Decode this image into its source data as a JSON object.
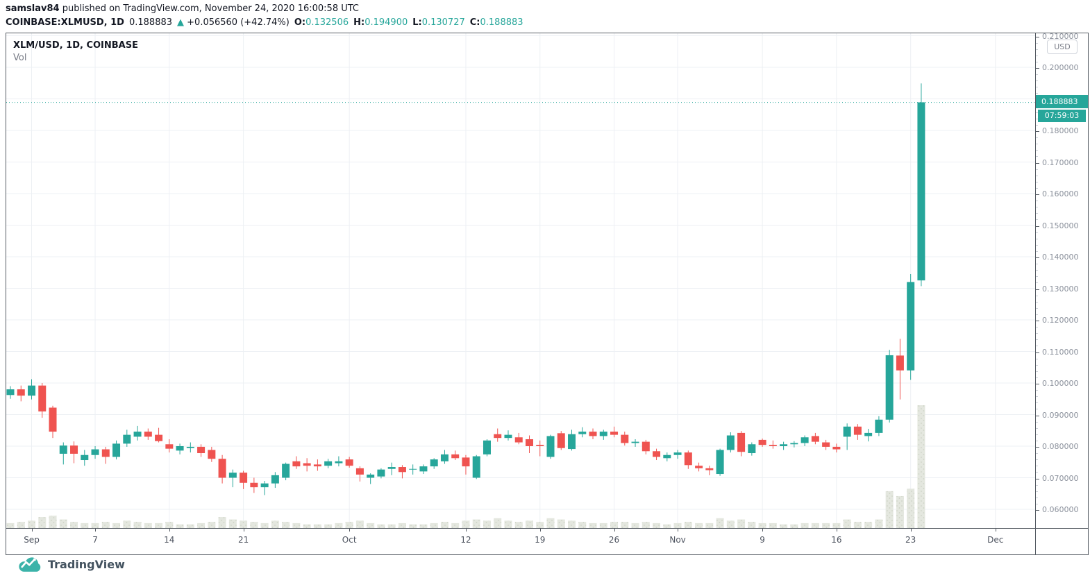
{
  "header": {
    "author": "samslav84",
    "published_rest": " published on TradingView.com, November 24, 2020 16:00:58 UTC",
    "symbol": "COINBASE:XLMUSD, 1D",
    "last_price": "0.188883",
    "arrow_up": "▲",
    "change": "+0.056560 (+42.74%)",
    "ohlc": [
      {
        "label": "O:",
        "value": "0.132506"
      },
      {
        "label": "H:",
        "value": "0.194900"
      },
      {
        "label": "L:",
        "value": "0.130727"
      },
      {
        "label": "C:",
        "value": "0.188883"
      }
    ]
  },
  "chart": {
    "legend_title": "XLM/USD, 1D, COINBASE",
    "legend_vol": "Vol",
    "currency_badge": "USD",
    "price_label": "0.188883",
    "countdown": "07:59:03",
    "colors": {
      "up": "#26a69a",
      "down": "#ef5350",
      "price_line": "#26a69a",
      "grid": "#edf0f4",
      "volume": "#e4e7df",
      "volume_dot": "#c9cfc0"
    }
  },
  "footer": {
    "logo_text": "TradingView"
  },
  "chart_data": {
    "type": "candlestick",
    "symbol": "XLM/USD",
    "interval": "1D",
    "exchange": "COINBASE",
    "title": "XLM/USD, 1D, COINBASE",
    "current_price": 0.188883,
    "y_axis": {
      "min": 0.06,
      "max": 0.21,
      "step": 0.01,
      "format_decimals": 6,
      "unit": "USD"
    },
    "x_labels": [
      {
        "label": "Sep",
        "day_index": 2
      },
      {
        "label": "7",
        "day_index": 8
      },
      {
        "label": "14",
        "day_index": 15
      },
      {
        "label": "21",
        "day_index": 22
      },
      {
        "label": "Oct",
        "day_index": 32
      },
      {
        "label": "12",
        "day_index": 43
      },
      {
        "label": "19",
        "day_index": 50
      },
      {
        "label": "26",
        "day_index": 57
      },
      {
        "label": "Nov",
        "day_index": 63
      },
      {
        "label": "9",
        "day_index": 71
      },
      {
        "label": "16",
        "day_index": 78
      },
      {
        "label": "23",
        "day_index": 85
      },
      {
        "label": "Dec",
        "day_index": 93
      }
    ],
    "candles_format": [
      "open",
      "high",
      "low",
      "close",
      "volume_pct_of_max"
    ],
    "candles": [
      [
        0.0962,
        0.099,
        0.095,
        0.098,
        4
      ],
      [
        0.098,
        0.0992,
        0.0942,
        0.096,
        5
      ],
      [
        0.096,
        0.1012,
        0.0948,
        0.0992,
        6
      ],
      [
        0.0992,
        0.1,
        0.089,
        0.091,
        9
      ],
      [
        0.0922,
        0.0928,
        0.0826,
        0.0846,
        10
      ],
      [
        0.0776,
        0.0812,
        0.0742,
        0.0802,
        7
      ],
      [
        0.0802,
        0.0815,
        0.0746,
        0.0776,
        5
      ],
      [
        0.0756,
        0.0788,
        0.0738,
        0.0772,
        4
      ],
      [
        0.0772,
        0.08,
        0.076,
        0.079,
        4
      ],
      [
        0.079,
        0.0798,
        0.0744,
        0.0766,
        5
      ],
      [
        0.0766,
        0.0818,
        0.0758,
        0.0808,
        4
      ],
      [
        0.0808,
        0.0852,
        0.0798,
        0.0836,
        6
      ],
      [
        0.083,
        0.0864,
        0.0818,
        0.0846,
        5
      ],
      [
        0.0846,
        0.0856,
        0.082,
        0.083,
        4
      ],
      [
        0.0836,
        0.0858,
        0.0812,
        0.0816,
        4
      ],
      [
        0.0806,
        0.0822,
        0.078,
        0.0792,
        5
      ],
      [
        0.0786,
        0.0808,
        0.0774,
        0.08,
        3
      ],
      [
        0.0794,
        0.0812,
        0.078,
        0.0798,
        3
      ],
      [
        0.0798,
        0.0806,
        0.0766,
        0.0778,
        4
      ],
      [
        0.0788,
        0.0798,
        0.075,
        0.076,
        5
      ],
      [
        0.076,
        0.0772,
        0.0682,
        0.07,
        9
      ],
      [
        0.07,
        0.0726,
        0.067,
        0.0716,
        7
      ],
      [
        0.0716,
        0.0722,
        0.0664,
        0.0684,
        6
      ],
      [
        0.0684,
        0.07,
        0.0652,
        0.067,
        5
      ],
      [
        0.067,
        0.069,
        0.0645,
        0.0682,
        4
      ],
      [
        0.0682,
        0.0718,
        0.0668,
        0.0708,
        6
      ],
      [
        0.07,
        0.0748,
        0.0692,
        0.0744,
        5
      ],
      [
        0.0752,
        0.0768,
        0.0728,
        0.0736,
        4
      ],
      [
        0.0746,
        0.0762,
        0.072,
        0.0738,
        3
      ],
      [
        0.0742,
        0.0758,
        0.0722,
        0.0736,
        3
      ],
      [
        0.0738,
        0.076,
        0.073,
        0.0752,
        3
      ],
      [
        0.0746,
        0.0768,
        0.0736,
        0.0752,
        4
      ],
      [
        0.0758,
        0.0766,
        0.0732,
        0.0738,
        5
      ],
      [
        0.073,
        0.0736,
        0.0688,
        0.071,
        6
      ],
      [
        0.07,
        0.0714,
        0.068,
        0.071,
        4
      ],
      [
        0.0704,
        0.073,
        0.0698,
        0.0726,
        3
      ],
      [
        0.0728,
        0.0748,
        0.0708,
        0.0734,
        3
      ],
      [
        0.0734,
        0.074,
        0.0698,
        0.0718,
        4
      ],
      [
        0.0726,
        0.0742,
        0.071,
        0.0728,
        3
      ],
      [
        0.072,
        0.0742,
        0.0712,
        0.0736,
        3
      ],
      [
        0.0736,
        0.0762,
        0.0728,
        0.0758,
        4
      ],
      [
        0.0752,
        0.0788,
        0.0744,
        0.0774,
        5
      ],
      [
        0.0774,
        0.0786,
        0.0756,
        0.0762,
        4
      ],
      [
        0.0764,
        0.0772,
        0.071,
        0.0736,
        6
      ],
      [
        0.07,
        0.0772,
        0.0696,
        0.0768,
        7
      ],
      [
        0.0774,
        0.0822,
        0.0768,
        0.0818,
        6
      ],
      [
        0.0838,
        0.0856,
        0.0814,
        0.0826,
        8
      ],
      [
        0.0826,
        0.085,
        0.0818,
        0.0836,
        6
      ],
      [
        0.0828,
        0.0842,
        0.0806,
        0.0812,
        5
      ],
      [
        0.0822,
        0.0834,
        0.0778,
        0.08,
        6
      ],
      [
        0.0804,
        0.0818,
        0.0768,
        0.08,
        5
      ],
      [
        0.0766,
        0.0836,
        0.076,
        0.0832,
        8
      ],
      [
        0.0841,
        0.0848,
        0.0788,
        0.0794,
        7
      ],
      [
        0.0791,
        0.0852,
        0.0786,
        0.0838,
        6
      ],
      [
        0.0838,
        0.086,
        0.0828,
        0.0846,
        5
      ],
      [
        0.0846,
        0.0856,
        0.0822,
        0.0832,
        4
      ],
      [
        0.0832,
        0.0852,
        0.082,
        0.0846,
        4
      ],
      [
        0.0846,
        0.0862,
        0.0828,
        0.0836,
        5
      ],
      [
        0.0836,
        0.0846,
        0.0802,
        0.081,
        5
      ],
      [
        0.081,
        0.0822,
        0.0798,
        0.0814,
        4
      ],
      [
        0.0814,
        0.082,
        0.0774,
        0.0784,
        5
      ],
      [
        0.0784,
        0.0792,
        0.0756,
        0.0766,
        4
      ],
      [
        0.0762,
        0.078,
        0.0752,
        0.0772,
        3
      ],
      [
        0.0772,
        0.0788,
        0.076,
        0.078,
        4
      ],
      [
        0.078,
        0.0786,
        0.0728,
        0.074,
        5
      ],
      [
        0.0738,
        0.0748,
        0.072,
        0.073,
        4
      ],
      [
        0.073,
        0.0738,
        0.0708,
        0.0724,
        4
      ],
      [
        0.0712,
        0.0792,
        0.0706,
        0.0788,
        8
      ],
      [
        0.0788,
        0.0844,
        0.078,
        0.0834,
        6
      ],
      [
        0.0842,
        0.0848,
        0.0768,
        0.0782,
        7
      ],
      [
        0.0778,
        0.0812,
        0.077,
        0.0806,
        5
      ],
      [
        0.082,
        0.0824,
        0.0798,
        0.0804,
        4
      ],
      [
        0.0804,
        0.0818,
        0.0792,
        0.08,
        4
      ],
      [
        0.08,
        0.0814,
        0.0788,
        0.0806,
        3
      ],
      [
        0.0806,
        0.0816,
        0.0796,
        0.081,
        3
      ],
      [
        0.081,
        0.0834,
        0.08,
        0.0828,
        4
      ],
      [
        0.0832,
        0.0842,
        0.0806,
        0.0814,
        4
      ],
      [
        0.0812,
        0.082,
        0.0788,
        0.0798,
        4
      ],
      [
        0.0798,
        0.0808,
        0.078,
        0.079,
        4
      ],
      [
        0.083,
        0.0872,
        0.0788,
        0.0862,
        7
      ],
      [
        0.0862,
        0.087,
        0.082,
        0.0836,
        5
      ],
      [
        0.0832,
        0.0855,
        0.0815,
        0.0842,
        5
      ],
      [
        0.0842,
        0.0895,
        0.0832,
        0.0884,
        7
      ],
      [
        0.0884,
        0.1105,
        0.0875,
        0.1088,
        30
      ],
      [
        0.1087,
        0.114,
        0.0948,
        0.104,
        26
      ],
      [
        0.104,
        0.1345,
        0.101,
        0.132,
        32
      ],
      [
        0.1325,
        0.1949,
        0.1307,
        0.1889,
        100
      ]
    ]
  }
}
